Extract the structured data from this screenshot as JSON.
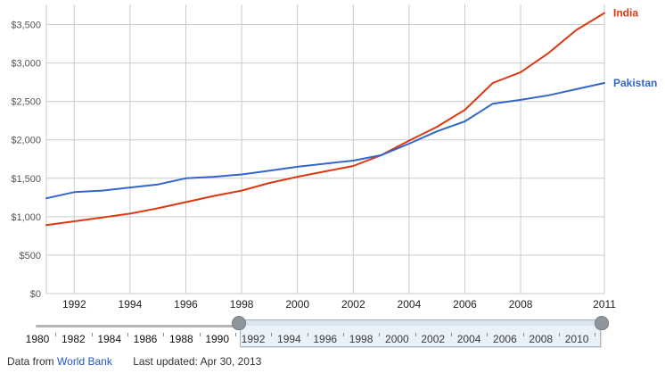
{
  "chart_data": {
    "type": "line",
    "title": "",
    "xlabel": "",
    "ylabel": "",
    "x": [
      1991,
      1992,
      1993,
      1994,
      1995,
      1996,
      1997,
      1998,
      1999,
      2000,
      2001,
      2002,
      2003,
      2004,
      2005,
      2006,
      2007,
      2008,
      2009,
      2010,
      2011
    ],
    "series": [
      {
        "name": "India",
        "color": "#dc3912",
        "values": [
          890,
          940,
          990,
          1040,
          1110,
          1190,
          1270,
          1340,
          1440,
          1520,
          1590,
          1660,
          1800,
          1990,
          2170,
          2390,
          2740,
          2880,
          3130,
          3430,
          3650
        ]
      },
      {
        "name": "Pakistan",
        "color": "#3366cc",
        "values": [
          1240,
          1320,
          1340,
          1380,
          1420,
          1500,
          1520,
          1550,
          1600,
          1650,
          1690,
          1730,
          1800,
          1950,
          2110,
          2240,
          2470,
          2520,
          2580,
          2660,
          2740
        ]
      }
    ],
    "ylim": [
      0,
      3500
    ],
    "y_tick_labels": [
      "$0",
      "$500",
      "$1,000",
      "$1,500",
      "$2,000",
      "$2,500",
      "$3,000",
      "$3,500"
    ],
    "x_tick_years": [
      1992,
      1994,
      1996,
      1998,
      2000,
      2002,
      2004,
      2006,
      2008,
      2011
    ],
    "grid": true,
    "legend_position": "right"
  },
  "timeline_slider": {
    "range_start_year": 1980,
    "range_end_year": 2011,
    "selected_start_year": 1991,
    "selected_end_year": 2011,
    "labels_outside_selection": [
      "1980",
      "1982",
      "1984",
      "1986",
      "1988",
      "1990"
    ],
    "labels_inside_selection": [
      "1992",
      "1994",
      "1996",
      "1998",
      "2000",
      "2002",
      "2004",
      "2006",
      "2008",
      "2010"
    ]
  },
  "footer": {
    "data_from_text": "Data from",
    "source_link_text": "World Bank",
    "last_updated_text": "Last updated: Apr 30, 2013"
  },
  "colors": {
    "gridline": "#cccccc",
    "y_tick_text": "#555555",
    "x_tick_text": "#222222",
    "link": "#2255cc"
  }
}
